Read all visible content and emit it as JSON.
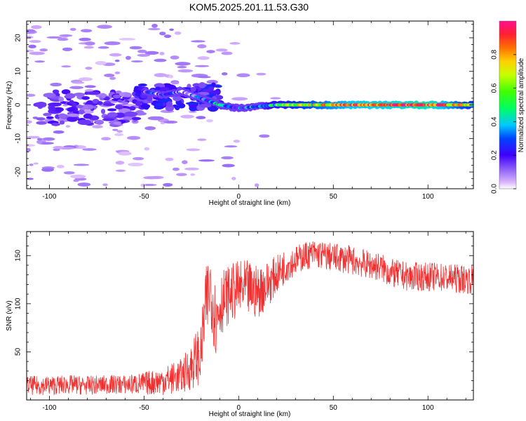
{
  "title": "KOM5.2025.201.11.53.G30",
  "chart_data": [
    {
      "type": "heatmap",
      "xlabel": "Height of straight line (km)",
      "ylabel": "Frequency (Hz)",
      "xlim": [
        -112,
        124
      ],
      "ylim": [
        -25,
        25
      ],
      "x_ticks": [
        -100,
        -50,
        0,
        50,
        100
      ],
      "y_ticks": [
        -20,
        -10,
        0,
        10,
        20
      ],
      "colorbar": {
        "label": "Normalized spectral amplitude",
        "range": [
          0,
          1
        ],
        "ticks": [
          0.0,
          0.2,
          0.4,
          0.6,
          0.8
        ],
        "tick_labels": [
          "0.0",
          "0.2",
          "0.4",
          "0.6",
          "0.8"
        ]
      },
      "ridge": {
        "description_points": [
          {
            "x": -50,
            "y": 4,
            "amp": 0.2
          },
          {
            "x": -40,
            "y": 3,
            "amp": 0.15
          },
          {
            "x": -30,
            "y": 4,
            "amp": 0.1
          },
          {
            "x": -20,
            "y": 2,
            "amp": 0.25
          },
          {
            "x": -10,
            "y": 0,
            "amp": 0.35
          },
          {
            "x": 0,
            "y": -1,
            "amp": 0.3
          },
          {
            "x": 10,
            "y": -0.5,
            "amp": 0.3
          },
          {
            "x": 20,
            "y": 0,
            "amp": 0.5
          },
          {
            "x": 40,
            "y": 0,
            "amp": 0.7
          },
          {
            "x": 60,
            "y": 0,
            "amp": 0.85
          },
          {
            "x": 80,
            "y": 0,
            "amp": 0.9
          },
          {
            "x": 100,
            "y": 0,
            "amp": 0.95
          },
          {
            "x": 124,
            "y": 0,
            "amp": 0.6
          }
        ]
      },
      "grid": false
    },
    {
      "type": "line",
      "xlabel": "Height of straight line (km)",
      "ylabel": "SNR (v/v)",
      "xlim": [
        -112,
        124
      ],
      "ylim": [
        0,
        175
      ],
      "x_ticks": [
        -100,
        -50,
        0,
        50,
        100
      ],
      "y_ticks": [
        50,
        100,
        150
      ],
      "color": "#f03030",
      "series": [
        {
          "x": [
            -112,
            -100,
            -90,
            -80,
            -70,
            -60,
            -50,
            -40,
            -30,
            -25,
            -22,
            -20,
            -18,
            -15,
            -12,
            -10,
            -5,
            0,
            5,
            10,
            15,
            20,
            25,
            30,
            35,
            40,
            45,
            50,
            55,
            60,
            65,
            70,
            75,
            80,
            85,
            90,
            95,
            100,
            105,
            110,
            115,
            124
          ],
          "values": [
            15,
            15,
            16,
            15,
            16,
            16,
            17,
            20,
            25,
            35,
            45,
            45,
            90,
            120,
            80,
            100,
            110,
            115,
            115,
            112,
            120,
            130,
            140,
            145,
            150,
            152,
            150,
            148,
            147,
            145,
            142,
            140,
            138,
            132,
            130,
            128,
            128,
            128,
            128,
            127,
            126,
            125
          ],
          "noise_amplitude": [
            10,
            10,
            10,
            10,
            10,
            10,
            12,
            15,
            18,
            25,
            30,
            30,
            40,
            40,
            40,
            35,
            30,
            30,
            30,
            28,
            25,
            20,
            18,
            15,
            15,
            15,
            15,
            15,
            15,
            15,
            15,
            15,
            15,
            15,
            15,
            15,
            15,
            15,
            15,
            15,
            15,
            15
          ]
        }
      ],
      "grid": false
    }
  ]
}
